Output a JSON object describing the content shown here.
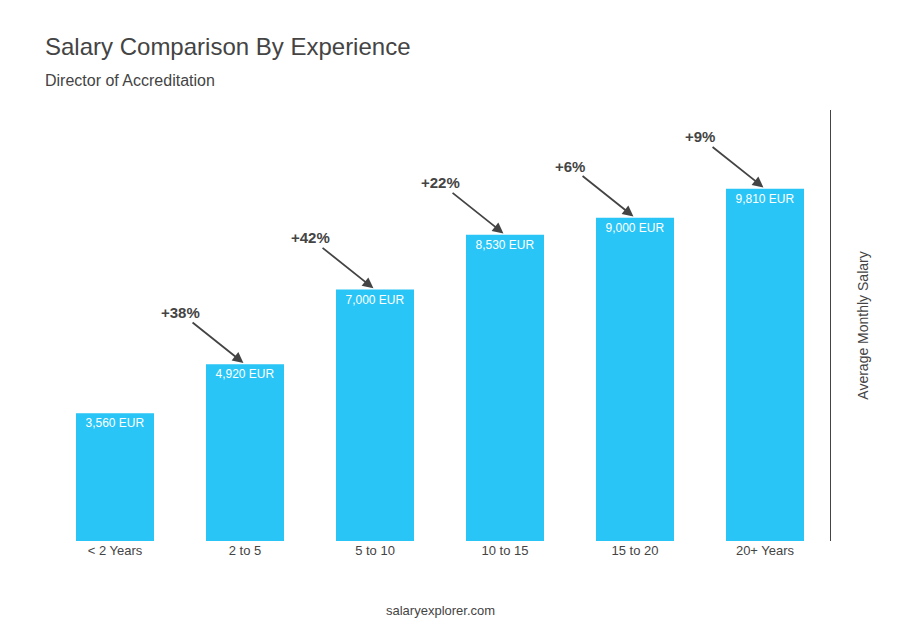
{
  "chart_data": {
    "type": "bar",
    "title": "Salary Comparison By Experience",
    "subtitle": "Director of Accreditation",
    "categories": [
      "< 2 Years",
      "2 to 5",
      "5 to 10",
      "10 to 15",
      "15 to 20",
      "20+ Years"
    ],
    "values": [
      3560,
      4920,
      7000,
      8530,
      9000,
      9810
    ],
    "value_labels": [
      "3,560 EUR",
      "4,920 EUR",
      "7,000 EUR",
      "8,530 EUR",
      "9,000 EUR",
      "9,810 EUR"
    ],
    "data_labels": true,
    "color": "#29c5f6",
    "ylabel": "Average Monthly Salary",
    "ylim": [
      0,
      12000
    ],
    "tick_labels": "x",
    "grid": false,
    "annotations": [
      {
        "text": "+38%",
        "from": "< 2 Years",
        "to": "2 to 5"
      },
      {
        "text": "+42%",
        "from": "2 to 5",
        "to": "5 to 10"
      },
      {
        "text": "+22%",
        "from": "5 to 10",
        "to": "10 to 15"
      },
      {
        "text": "+6%",
        "from": "10 to 15",
        "to": "15 to 20"
      },
      {
        "text": "+9%",
        "from": "15 to 20",
        "to": "20+ Years"
      }
    ],
    "footer": "salaryexplorer.com"
  }
}
